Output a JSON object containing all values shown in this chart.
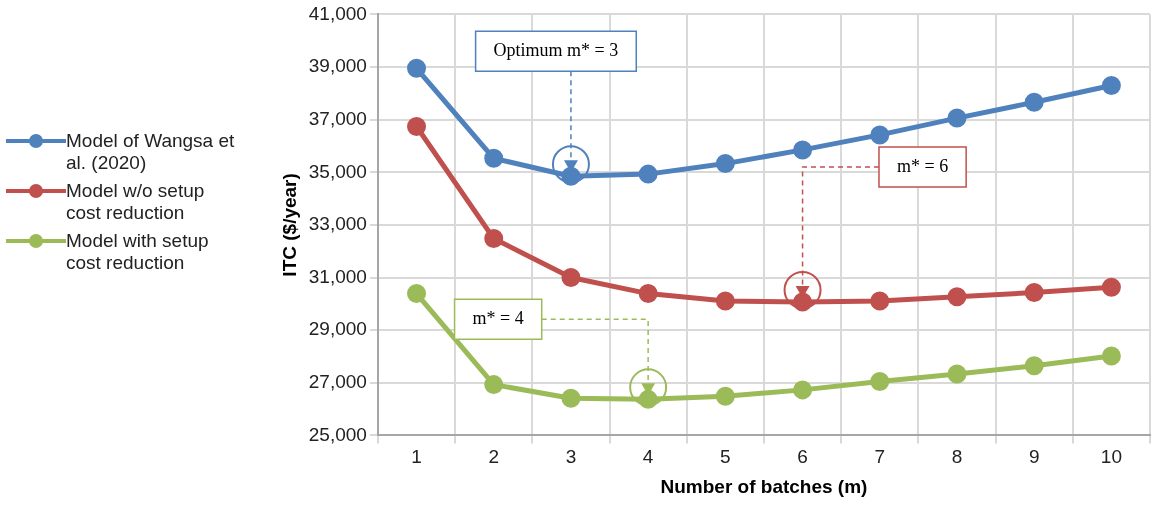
{
  "chart_data": {
    "type": "line",
    "xlabel": "Number of batches (m)",
    "ylabel": "ITC ($/year)",
    "categories": [
      "1",
      "2",
      "3",
      "4",
      "5",
      "6",
      "7",
      "8",
      "9",
      "10"
    ],
    "series": [
      {
        "name": "Model of Wangsa et al. (2020)",
        "color": "#4f81bd",
        "values": [
          38950,
          35530,
          34850,
          34930,
          35330,
          35850,
          36420,
          37060,
          37660,
          38300
        ]
      },
      {
        "name": "Model w/o setup cost reduction",
        "color": "#c0504d",
        "values": [
          36740,
          32480,
          31000,
          30390,
          30110,
          30070,
          30110,
          30270,
          30430,
          30630
        ]
      },
      {
        "name": "Model with setup cost reduction",
        "color": "#9bbb59",
        "values": [
          30390,
          26930,
          26410,
          26370,
          26490,
          26730,
          27050,
          27330,
          27650,
          28020
        ]
      }
    ],
    "ylim": [
      25000,
      41000
    ],
    "yticks": [
      {
        "value": 25000,
        "label": "25,000"
      },
      {
        "value": 27000,
        "label": "27,000"
      },
      {
        "value": 29000,
        "label": "29,000"
      },
      {
        "value": 31000,
        "label": "31,000"
      },
      {
        "value": 33000,
        "label": "33,000"
      },
      {
        "value": 35000,
        "label": "35,000"
      },
      {
        "value": 37000,
        "label": "37,000"
      },
      {
        "value": 39000,
        "label": "39,000"
      },
      {
        "value": 41000,
        "label": "41,000"
      }
    ],
    "grid": true,
    "legend": "left",
    "marker": "circle",
    "line_style": "solid",
    "annotations": [
      "Optimum m* = 3",
      "m* = 6",
      "m* = 4"
    ]
  }
}
